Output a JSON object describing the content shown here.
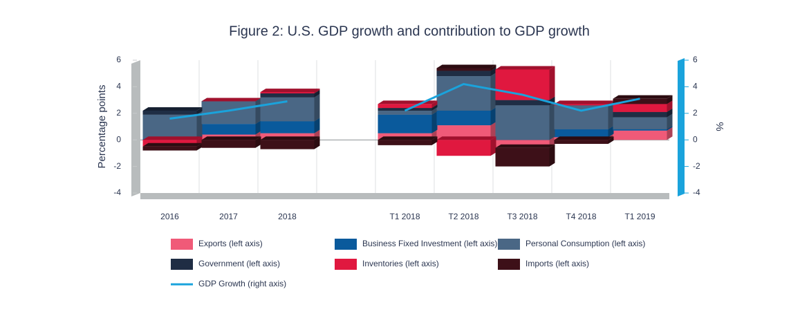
{
  "chart_data": {
    "type": "stacked-bar-line",
    "title": "Figure 2: U.S. GDP growth and contribution to GDP growth",
    "y_label": "Percentage points",
    "y2_label": "%",
    "categories": [
      "2016",
      "2017",
      "2018",
      null,
      "T1 2018",
      "T2 2018",
      "T3 2018",
      "T4 2018",
      "T1 2019"
    ],
    "ylim": [
      -4,
      6
    ],
    "yticks": [
      -4,
      -2,
      0,
      2,
      4,
      6
    ],
    "y2lim": [
      -4,
      6
    ],
    "y2ticks": [
      -4,
      -2,
      0,
      2,
      4,
      6
    ],
    "series": [
      {
        "name": "Exports (left axis)",
        "color": "#f05a78",
        "values": [
          0,
          0.4,
          0.5,
          null,
          0.5,
          1.1,
          -0.6,
          0.2,
          0.7
        ]
      },
      {
        "name": "Business Fixed Investment (left axis)",
        "color": "#0a5a9c",
        "values": [
          0.1,
          0.8,
          0.9,
          null,
          1.4,
          1.1,
          0,
          0.6,
          0.1
        ]
      },
      {
        "name": "Personal Consumption (left axis)",
        "color": "#4a6785",
        "values": [
          1.8,
          1.7,
          1.8,
          null,
          0.3,
          2.6,
          2.6,
          1.8,
          0.9
        ]
      },
      {
        "name": "Government (left axis)",
        "color": "#1f2d44",
        "values": [
          0.3,
          0,
          0.3,
          null,
          0.2,
          0.4,
          0.4,
          0,
          0.4
        ]
      },
      {
        "name": "Inventories (left axis)",
        "color": "#e0183f",
        "values": [
          -0.5,
          0,
          0.1,
          null,
          0.3,
          -1.2,
          2.3,
          0.1,
          0.6
        ]
      },
      {
        "name": "Imports (left axis)",
        "color": "#3d1018",
        "values": [
          -0.3,
          -0.6,
          -0.7,
          null,
          -0.4,
          0.2,
          -1.4,
          -0.3,
          0.4
        ]
      },
      {
        "name": "GDP Growth (right axis)",
        "color": "#1aa3dc",
        "type": "line",
        "axis": "y2",
        "values": [
          1.6,
          2.2,
          2.9,
          null,
          2.2,
          4.2,
          3.4,
          2.2,
          3.1
        ]
      }
    ]
  }
}
